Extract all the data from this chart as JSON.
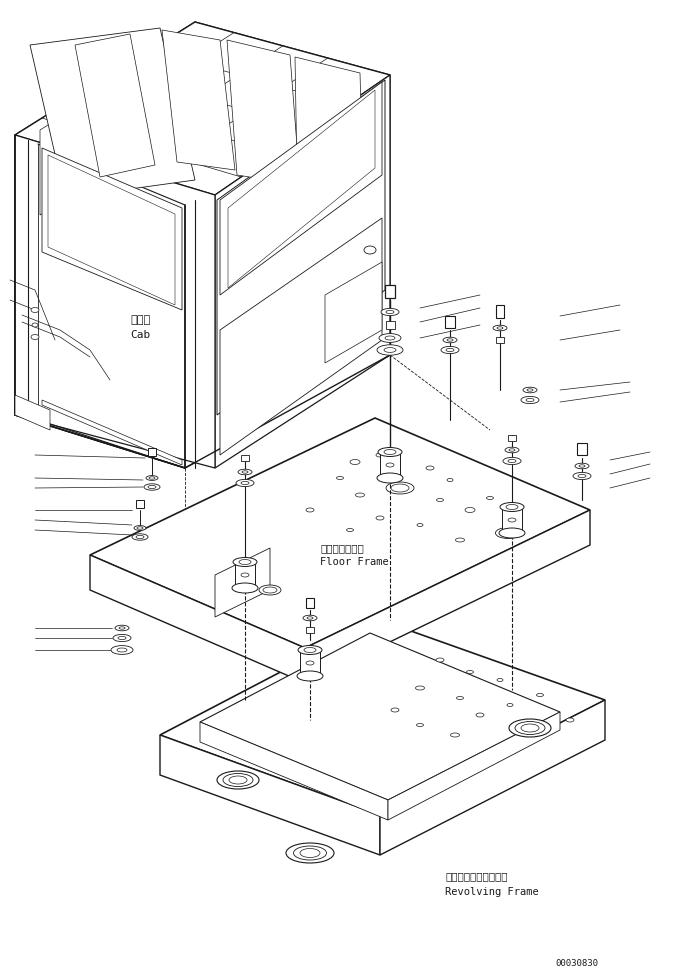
{
  "background_color": "#ffffff",
  "line_color": "#1a1a1a",
  "figsize": [
    6.75,
    9.76
  ],
  "dpi": 100,
  "labels": {
    "cab_jp": "キャブ",
    "cab_en": "Cab",
    "floor_jp": "フロアフレーム",
    "floor_en": "Floor Frame",
    "revolving_jp": "レボルビングフレーム",
    "revolving_en": "Revolving Frame",
    "part_no": "00030830"
  }
}
